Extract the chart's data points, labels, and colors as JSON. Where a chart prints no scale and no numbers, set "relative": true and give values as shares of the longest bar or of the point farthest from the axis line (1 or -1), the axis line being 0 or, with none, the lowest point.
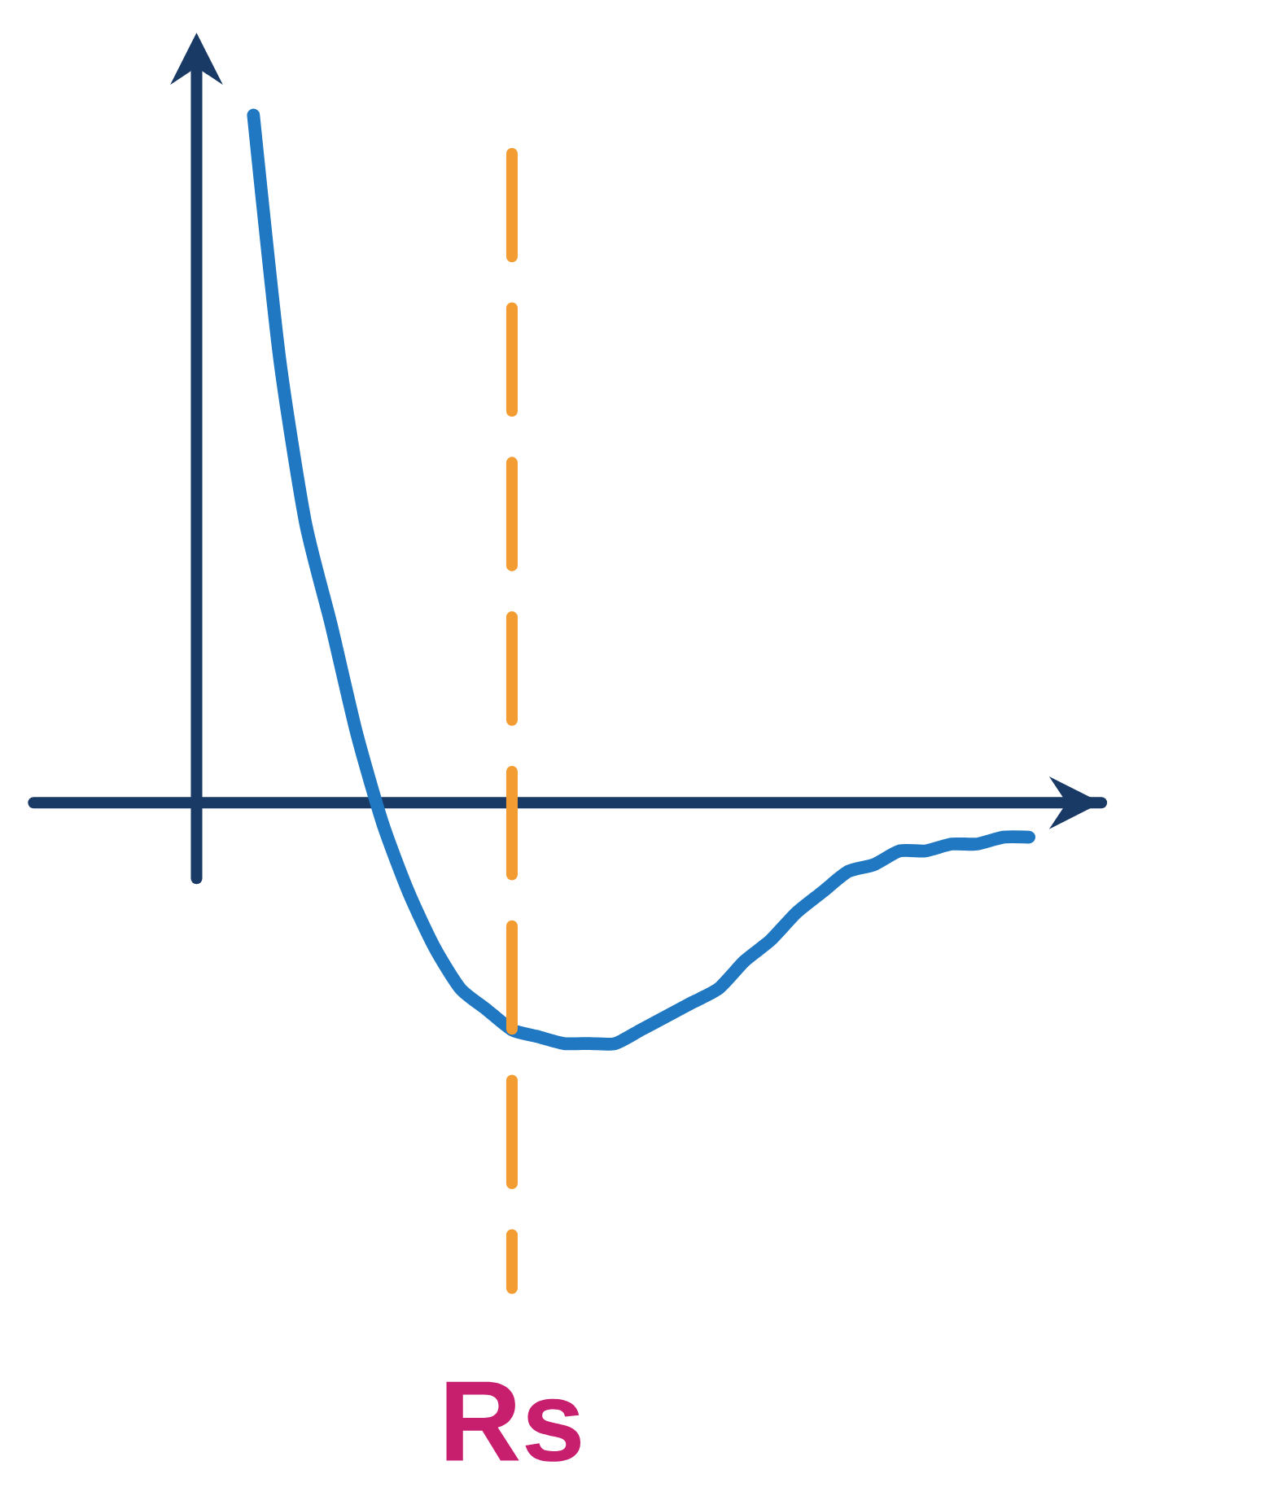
{
  "chart_data": {
    "type": "line",
    "relative": true,
    "categories": [
      null,
      null,
      null,
      null,
      null,
      null,
      null,
      null,
      null,
      null,
      null,
      null,
      null,
      null,
      null,
      null,
      null,
      null,
      null,
      null,
      null,
      null,
      null,
      null,
      null,
      null,
      null,
      null,
      null,
      null,
      null
    ],
    "series": [
      {
        "color": "#1f78c1",
        "values": [
          1.0,
          0.65,
          0.41,
          0.26,
          0.1,
          -0.03,
          -0.13,
          -0.21,
          -0.27,
          -0.3,
          -0.33,
          -0.34,
          -0.35,
          -0.35,
          -0.35,
          -0.33,
          -0.31,
          -0.29,
          -0.27,
          -0.23,
          -0.2,
          -0.16,
          -0.13,
          -0.1,
          -0.09,
          -0.07,
          -0.07,
          -0.06,
          -0.06,
          -0.05,
          -0.05
        ]
      }
    ],
    "ref_lines": [
      {
        "axis": "y",
        "value": 0,
        "color": "#1a3a66"
      }
    ],
    "annotations": [
      "Rs"
    ]
  }
}
